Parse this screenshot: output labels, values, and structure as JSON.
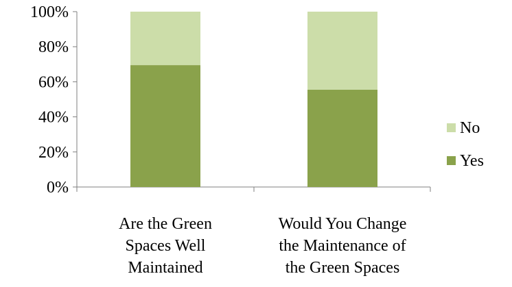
{
  "chart_data": {
    "type": "bar",
    "stacked": true,
    "percent": true,
    "categories": [
      [
        "Are the Green",
        "Spaces Well",
        "Maintained"
      ],
      [
        "Would You Change",
        "the Maintenance of",
        "the Green Spaces"
      ]
    ],
    "series": [
      {
        "name": "Yes",
        "values": [
          69.5,
          55.5
        ],
        "color": "#8aa24b"
      },
      {
        "name": "No",
        "values": [
          30.5,
          44.5
        ],
        "color": "#ccdda9"
      }
    ],
    "yticks": [
      "0%",
      "20%",
      "40%",
      "60%",
      "80%",
      "100%"
    ],
    "ylim": [
      0,
      100
    ],
    "grid": false,
    "legend": {
      "position": "right",
      "order": [
        "No",
        "Yes"
      ]
    }
  }
}
